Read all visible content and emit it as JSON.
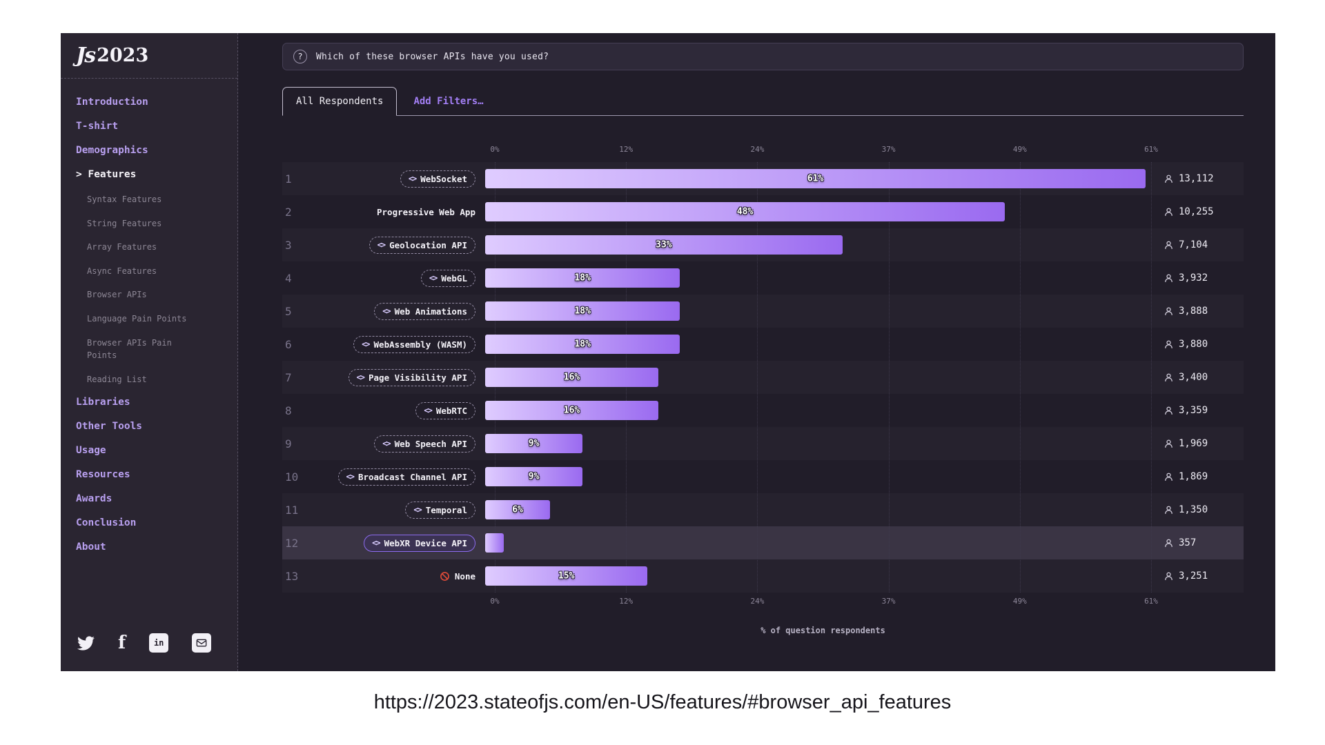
{
  "page": {
    "url_caption": "https://2023.stateofjs.com/en-US/features/#browser_api_features"
  },
  "sidebar": {
    "logo_mark": "Js",
    "logo_year": "2023",
    "active_prefix": ">",
    "items": [
      {
        "label": "Introduction",
        "type": "top"
      },
      {
        "label": "T-shirt",
        "type": "top"
      },
      {
        "label": "Demographics",
        "type": "top"
      },
      {
        "label": "Features",
        "type": "top",
        "active": true
      },
      {
        "label": "Syntax Features",
        "type": "sub"
      },
      {
        "label": "String Features",
        "type": "sub"
      },
      {
        "label": "Array Features",
        "type": "sub"
      },
      {
        "label": "Async Features",
        "type": "sub"
      },
      {
        "label": "Browser APIs",
        "type": "sub"
      },
      {
        "label": "Language Pain Points",
        "type": "sub"
      },
      {
        "label": "Browser APIs Pain Points",
        "type": "sub"
      },
      {
        "label": "Reading List",
        "type": "sub"
      },
      {
        "label": "Libraries",
        "type": "top"
      },
      {
        "label": "Other Tools",
        "type": "top"
      },
      {
        "label": "Usage",
        "type": "top"
      },
      {
        "label": "Resources",
        "type": "top"
      },
      {
        "label": "Awards",
        "type": "top"
      },
      {
        "label": "Conclusion",
        "type": "top"
      },
      {
        "label": "About",
        "type": "top"
      }
    ],
    "social": [
      {
        "name": "twitter"
      },
      {
        "name": "facebook"
      },
      {
        "name": "linkedin"
      },
      {
        "name": "email"
      }
    ]
  },
  "question": {
    "icon": "?",
    "text": "Which of these browser APIs have you used?"
  },
  "tabs": {
    "all_respondents": "All Respondents",
    "add_filters": "Add Filters…"
  },
  "chart_data": {
    "type": "bar",
    "orientation": "horizontal",
    "title": "Which of these browser APIs have you used?",
    "xlabel": "% of question respondents",
    "axis_ticks": [
      "0%",
      "12%",
      "24%",
      "37%",
      "49%",
      "61%"
    ],
    "xlim": [
      0,
      61.5
    ],
    "grid": true,
    "code_glyph": "<>",
    "bar_gradient": [
      "#dfccff",
      "#9a6af0"
    ],
    "items": [
      {
        "rank": 1,
        "label": "WebSocket",
        "pct": 61,
        "pct_label": "61%",
        "count": "13,112",
        "pill": true
      },
      {
        "rank": 2,
        "label": "Progressive Web App",
        "pct": 48,
        "pct_label": "48%",
        "count": "10,255",
        "pill": false
      },
      {
        "rank": 3,
        "label": "Geolocation API",
        "pct": 33,
        "pct_label": "33%",
        "count": "7,104",
        "pill": true
      },
      {
        "rank": 4,
        "label": "WebGL",
        "pct": 18,
        "pct_label": "18%",
        "count": "3,932",
        "pill": true
      },
      {
        "rank": 5,
        "label": "Web Animations",
        "pct": 18,
        "pct_label": "18%",
        "count": "3,888",
        "pill": true
      },
      {
        "rank": 6,
        "label": "WebAssembly (WASM)",
        "pct": 18,
        "pct_label": "18%",
        "count": "3,880",
        "pill": true
      },
      {
        "rank": 7,
        "label": "Page Visibility API",
        "pct": 16,
        "pct_label": "16%",
        "count": "3,400",
        "pill": true
      },
      {
        "rank": 8,
        "label": "WebRTC",
        "pct": 16,
        "pct_label": "16%",
        "count": "3,359",
        "pill": true
      },
      {
        "rank": 9,
        "label": "Web Speech API",
        "pct": 9,
        "pct_label": "9%",
        "count": "1,969",
        "pill": true
      },
      {
        "rank": 10,
        "label": "Broadcast Channel API",
        "pct": 9,
        "pct_label": "9%",
        "count": "1,869",
        "pill": true
      },
      {
        "rank": 11,
        "label": "Temporal",
        "pct": 6,
        "pct_label": "6%",
        "count": "1,350",
        "pill": true
      },
      {
        "rank": 12,
        "label": "WebXR Device API",
        "pct": 1.7,
        "pct_label": "",
        "count": "357",
        "pill": true,
        "highlight": true
      },
      {
        "rank": 13,
        "label": "None",
        "pct": 15,
        "pct_label": "15%",
        "count": "3,251",
        "pill": false,
        "icon": "none"
      }
    ]
  }
}
